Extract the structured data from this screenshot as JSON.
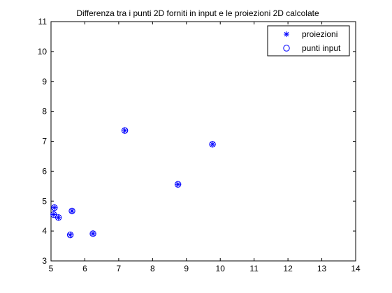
{
  "chart_data": {
    "type": "scatter",
    "title": "Differenza tra i punti 2D forniti in input e le proiezioni 2D calcolate",
    "xlabel": "",
    "ylabel": "",
    "xlim": [
      5,
      14
    ],
    "ylim": [
      3,
      11
    ],
    "xticks": [
      5,
      6,
      7,
      8,
      9,
      10,
      11,
      12,
      13,
      14
    ],
    "yticks": [
      3,
      4,
      5,
      6,
      7,
      8,
      9,
      10,
      11
    ],
    "grid": false,
    "legend_position": "top-right",
    "series": [
      {
        "name": "proiezioni",
        "marker": "asterisk",
        "color": "#0000ff",
        "x": [
          5.08,
          5.1,
          5.22,
          5.57,
          5.62,
          6.24,
          7.18,
          8.75,
          9.77
        ],
        "y": [
          4.55,
          4.78,
          4.45,
          3.87,
          4.67,
          3.91,
          7.36,
          5.56,
          6.9
        ]
      },
      {
        "name": "punti input",
        "marker": "circle",
        "color": "#0000ff",
        "x": [
          5.08,
          5.1,
          5.22,
          5.57,
          5.62,
          6.24,
          7.18,
          8.75,
          9.77
        ],
        "y": [
          4.55,
          4.78,
          4.45,
          3.87,
          4.67,
          3.91,
          7.36,
          5.56,
          6.9
        ]
      }
    ]
  }
}
